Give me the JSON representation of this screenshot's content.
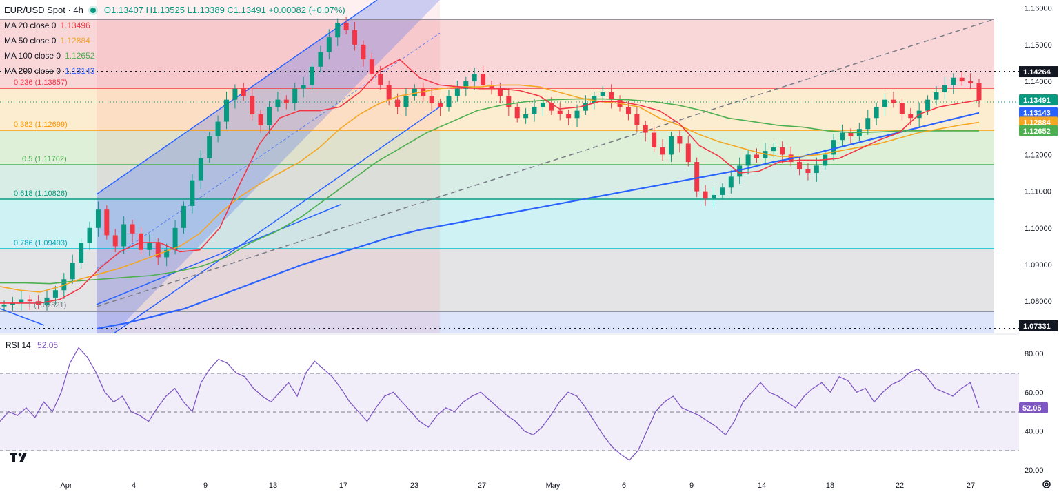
{
  "header": {
    "symbol": "EUR/USD Spot · 4h",
    "ohlc": "O1.13407  H1.13525  L1.13389  C1.13491  +0.00082 (+0.07%)"
  },
  "mas": [
    {
      "label": "MA 20 close 0",
      "value": "1.13496",
      "color": "#f23645"
    },
    {
      "label": "MA 50 close 0",
      "value": "1.12884",
      "color": "#f5a623"
    },
    {
      "label": "MA 100 close 0",
      "value": "1.12652",
      "color": "#4caf50"
    },
    {
      "label": "MA 200 close 0",
      "value": "1.13143",
      "color": "#2962ff"
    }
  ],
  "rsi": {
    "label": "RSI 14",
    "value": "52.05"
  },
  "colors": {
    "up": "#089981",
    "down": "#f23645",
    "accent": "#2962ff",
    "rsi": "#7e57c2"
  },
  "chart_data": {
    "type": "line",
    "title": "EUR/USD Spot · 4h",
    "y_axis": {
      "ticks": [
        "1.16000",
        "1.15000",
        "1.14000",
        "1.13000",
        "1.12000",
        "1.11000",
        "1.10000",
        "1.09000",
        "1.08000"
      ],
      "ylim": [
        1.0712,
        1.1622
      ]
    },
    "x_axis": {
      "ticks": [
        "Apr",
        "4",
        "9",
        "13",
        "17",
        "23",
        "27",
        "May",
        "6",
        "9",
        "14",
        "18",
        "22",
        "27"
      ]
    },
    "fib_levels": [
      {
        "ratio": "0.236",
        "label": "0.236 (1.13857)",
        "value": 1.13857
      },
      {
        "ratio": "0.382",
        "label": "0.382 (1.12699)",
        "value": 1.12699
      },
      {
        "ratio": "0.5",
        "label": "0.5 (1.11762)",
        "value": 1.11762
      },
      {
        "ratio": "0.618",
        "label": "0.618 (1.10826)",
        "value": 1.10826
      },
      {
        "ratio": "0.786",
        "label": "0.786 (1.09493)",
        "value": 1.09493
      },
      {
        "ratio": "1",
        "label": "1 (1.07821)",
        "value": 1.07821
      }
    ],
    "fib_top": 1.15726,
    "horizontal_lines": [
      {
        "label": "1.14264",
        "value": 1.14264
      },
      {
        "label": "1.07331",
        "value": 1.07331
      }
    ],
    "price_tags": [
      {
        "label": "1.13496",
        "value": 1.13496,
        "color": "#f23645"
      },
      {
        "label": "1.13491",
        "value": 1.13491,
        "color": "#089981"
      },
      {
        "label": "1.13143",
        "value": 1.13143,
        "color": "#2962ff"
      },
      {
        "label": "1.12884",
        "value": 1.12884,
        "color": "#f5a623"
      },
      {
        "label": "1.12652",
        "value": 1.12652,
        "color": "#4caf50"
      }
    ],
    "series": [
      {
        "name": "MA 20 close 0",
        "values": [
          1.0795,
          1.0795,
          1.0795,
          1.0805,
          1.0835,
          1.089,
          1.0935,
          1.096,
          1.096,
          1.0935,
          1.094,
          1.1,
          1.112,
          1.123,
          1.13,
          1.132,
          1.132,
          1.133,
          1.137,
          1.143,
          1.146,
          1.141,
          1.139,
          1.1385,
          1.138,
          1.138,
          1.1375,
          1.136,
          1.1325,
          1.133,
          1.1345,
          1.1345,
          1.1335,
          1.132,
          1.1285,
          1.1225,
          1.1195,
          1.115,
          1.1155,
          1.118,
          1.1185,
          1.1185,
          1.119,
          1.1215,
          1.124,
          1.126,
          1.131,
          1.133,
          1.134,
          1.1349
        ]
      },
      {
        "name": "MA 50 close 0",
        "values": [
          1.084,
          1.083,
          1.0825,
          1.084,
          1.086,
          1.0875,
          1.089,
          1.091,
          1.093,
          1.095,
          1.0985,
          1.104,
          1.1085,
          1.112,
          1.115,
          1.118,
          1.122,
          1.127,
          1.131,
          1.134,
          1.136,
          1.137,
          1.138,
          1.1385,
          1.1385,
          1.139,
          1.139,
          1.1385,
          1.137,
          1.1355,
          1.1345,
          1.134,
          1.133,
          1.13,
          1.128,
          1.1255,
          1.1235,
          1.122,
          1.1205,
          1.1195,
          1.1195,
          1.12,
          1.121,
          1.122,
          1.123,
          1.1245,
          1.126,
          1.127,
          1.128,
          1.1288
        ]
      },
      {
        "name": "MA 100 close 0",
        "values": [
          1.085,
          1.085,
          1.0848,
          1.0855,
          1.086,
          1.0865,
          1.087,
          1.088,
          1.0895,
          1.092,
          1.096,
          1.099,
          1.103,
          1.108,
          1.113,
          1.118,
          1.122,
          1.126,
          1.129,
          1.132,
          1.1335,
          1.1345,
          1.135,
          1.1352,
          1.1352,
          1.135,
          1.1345,
          1.1335,
          1.132,
          1.13,
          1.129,
          1.128,
          1.1275,
          1.1265,
          1.126,
          1.1262,
          1.1265,
          1.1265,
          1.1265,
          1.1265
        ]
      },
      {
        "name": "MA 200 close 0",
        "values": [
          1.0725,
          1.074,
          1.076,
          1.078,
          1.081,
          1.084,
          1.087,
          1.09,
          1.0925,
          1.095,
          1.0975,
          1.0995,
          1.101,
          1.1025,
          1.104,
          1.1055,
          1.107,
          1.1085,
          1.11,
          1.1115,
          1.113,
          1.1145,
          1.116,
          1.118,
          1.1195,
          1.1215,
          1.1235,
          1.1255,
          1.1275,
          1.1295,
          1.1314
        ]
      },
      {
        "name": "RSI 14",
        "range": [
          20,
          80
        ],
        "ticks": [
          "80.00",
          "60.00",
          "40.00",
          "20.00"
        ],
        "bands": [
          70,
          50,
          30
        ],
        "values": [
          45,
          50,
          48,
          52,
          47,
          55,
          50,
          60,
          75,
          83,
          78,
          70,
          60,
          55,
          58,
          50,
          48,
          45,
          52,
          58,
          62,
          55,
          50,
          65,
          72,
          77,
          75,
          70,
          68,
          62,
          58,
          55,
          60,
          65,
          58,
          70,
          76,
          72,
          68,
          62,
          55,
          50,
          45,
          52,
          58,
          60,
          55,
          50,
          45,
          42,
          48,
          52,
          50,
          55,
          58,
          60,
          56,
          52,
          48,
          45,
          40,
          38,
          42,
          48,
          55,
          60,
          58,
          52,
          45,
          38,
          32,
          28,
          25,
          30,
          40,
          50,
          55,
          58,
          52,
          50,
          48,
          45,
          42,
          38,
          45,
          55,
          60,
          65,
          60,
          58,
          55,
          52,
          58,
          62,
          65,
          60,
          68,
          66,
          60,
          62,
          55,
          60,
          64,
          66,
          70,
          72,
          68,
          62,
          60,
          58,
          62,
          65,
          52
        ]
      }
    ],
    "candles_close": [
      1.079,
      1.0795,
      1.0805,
      1.08,
      1.079,
      1.081,
      1.083,
      1.086,
      1.0905,
      1.096,
      1.1,
      1.105,
      1.098,
      1.095,
      1.101,
      1.0985,
      1.094,
      1.096,
      1.092,
      1.094,
      1.1,
      1.106,
      1.113,
      1.119,
      1.125,
      1.129,
      1.135,
      1.138,
      1.136,
      1.131,
      1.128,
      1.133,
      1.135,
      1.134,
      1.138,
      1.139,
      1.144,
      1.148,
      1.152,
      1.156,
      1.154,
      1.15,
      1.146,
      1.142,
      1.139,
      1.135,
      1.133,
      1.136,
      1.138,
      1.136,
      1.134,
      1.133,
      1.136,
      1.138,
      1.14,
      1.142,
      1.139,
      1.138,
      1.136,
      1.133,
      1.13,
      1.131,
      1.133,
      1.134,
      1.132,
      1.131,
      1.13,
      1.132,
      1.134,
      1.136,
      1.137,
      1.135,
      1.133,
      1.131,
      1.128,
      1.126,
      1.122,
      1.12,
      1.125,
      1.123,
      1.118,
      1.11,
      1.108,
      1.109,
      1.111,
      1.114,
      1.117,
      1.12,
      1.119,
      1.121,
      1.122,
      1.12,
      1.118,
      1.116,
      1.115,
      1.117,
      1.12,
      1.124,
      1.126,
      1.125,
      1.127,
      1.13,
      1.133,
      1.135,
      1.134,
      1.131,
      1.13,
      1.132,
      1.135,
      1.137,
      1.139,
      1.141,
      1.14,
      1.1395,
      1.1349
    ]
  }
}
